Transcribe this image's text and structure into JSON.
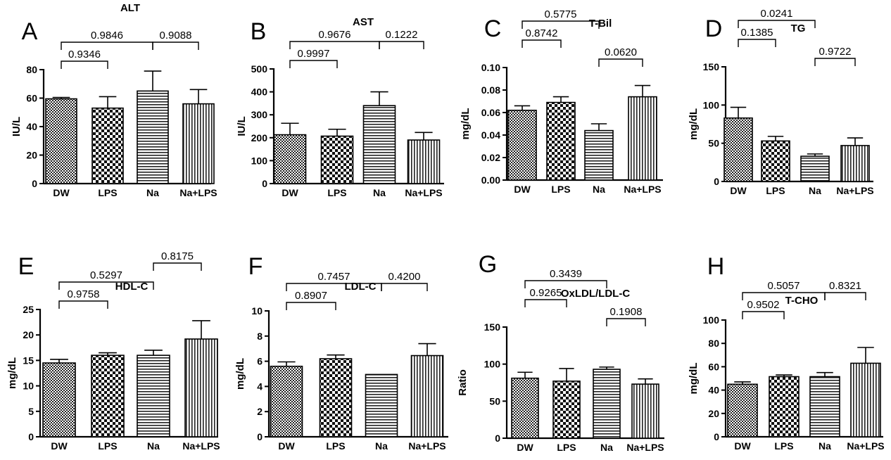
{
  "figure": {
    "n_panels": 8
  },
  "chart_data": [
    {
      "type": "bar",
      "letter": "A",
      "title": "ALT",
      "ylabel": "IU/L",
      "categories": [
        "DW",
        "LPS",
        "Na",
        "Na+LPS"
      ],
      "values": [
        59.5,
        53,
        65,
        56
      ],
      "errors": [
        1,
        8,
        14,
        10
      ],
      "ylim": [
        0,
        80
      ],
      "yticks": [
        "0",
        "20",
        "40",
        "60",
        "80"
      ],
      "ytick_values": [
        0,
        20,
        40,
        60,
        80
      ],
      "comparisons": [
        {
          "from": 0,
          "to": 2,
          "label": "0.9846",
          "level": 2
        },
        {
          "from": 0,
          "to": 1,
          "label": "0.9346",
          "level": 1
        },
        {
          "from": 2,
          "to": 3,
          "label": "0.9088",
          "level": 2
        }
      ]
    },
    {
      "type": "bar",
      "letter": "B",
      "title": "AST",
      "ylabel": "IU/L",
      "categories": [
        "DW",
        "LPS",
        "Na",
        "Na+LPS"
      ],
      "values": [
        213,
        207,
        340,
        190
      ],
      "errors": [
        50,
        30,
        60,
        33
      ],
      "ylim": [
        0,
        500
      ],
      "yticks": [
        "0",
        "100",
        "200",
        "300",
        "400",
        "500"
      ],
      "ytick_values": [
        0,
        100,
        200,
        300,
        400,
        500
      ],
      "comparisons": [
        {
          "from": 0,
          "to": 2,
          "label": "0.9676",
          "level": 2
        },
        {
          "from": 0,
          "to": 1,
          "label": "0.9997",
          "level": 1
        },
        {
          "from": 2,
          "to": 3,
          "label": "0.1222",
          "level": 2
        }
      ]
    },
    {
      "type": "bar",
      "letter": "C",
      "title": "T-Bil",
      "ylabel": "mg/dL",
      "categories": [
        "DW",
        "LPS",
        "Na",
        "Na+LPS"
      ],
      "values": [
        0.062,
        0.069,
        0.044,
        0.074
      ],
      "errors": [
        0.004,
        0.005,
        0.006,
        0.01
      ],
      "ylim": [
        0,
        0.1
      ],
      "yticks": [
        "0.00",
        "0.02",
        "0.04",
        "0.06",
        "0.08",
        "0.10"
      ],
      "ytick_values": [
        0,
        0.02,
        0.04,
        0.06,
        0.08,
        0.1
      ],
      "comparisons": [
        {
          "from": 0,
          "to": 2,
          "label": "0.5775",
          "level": 3
        },
        {
          "from": 0,
          "to": 1,
          "label": "0.8742",
          "level": 2
        },
        {
          "from": 2,
          "to": 3,
          "label": "0.0620",
          "level": 1
        }
      ]
    },
    {
      "type": "bar",
      "letter": "D",
      "title": "TG",
      "ylabel": "mg/dL",
      "categories": [
        "DW",
        "LPS",
        "Na",
        "Na+LPS"
      ],
      "values": [
        83,
        53,
        33,
        47
      ],
      "errors": [
        14,
        6,
        3,
        10
      ],
      "ylim": [
        0,
        150
      ],
      "yticks": [
        "0",
        "50",
        "100",
        "150"
      ],
      "ytick_values": [
        0,
        50,
        100,
        150
      ],
      "comparisons": [
        {
          "from": 0,
          "to": 2,
          "label": "0.0241",
          "level": 3
        },
        {
          "from": 0,
          "to": 1,
          "label": "0.1385",
          "level": 2
        },
        {
          "from": 2,
          "to": 3,
          "label": "0.9722",
          "level": 1
        }
      ]
    },
    {
      "type": "bar",
      "letter": "E",
      "title": "HDL-C",
      "ylabel": "mg/dL",
      "categories": [
        "DW",
        "LPS",
        "Na",
        "Na+LPS"
      ],
      "values": [
        14.5,
        16,
        16,
        19.2
      ],
      "errors": [
        0.7,
        0.5,
        1,
        3.6
      ],
      "ylim": [
        0,
        25
      ],
      "yticks": [
        "0",
        "5",
        "10",
        "15",
        "20",
        "25"
      ],
      "ytick_values": [
        0,
        5,
        10,
        15,
        20,
        25
      ],
      "comparisons": [
        {
          "from": 0,
          "to": 2,
          "label": "0.5297",
          "level": 2
        },
        {
          "from": 0,
          "to": 1,
          "label": "0.9758",
          "level": 1
        },
        {
          "from": 2,
          "to": 3,
          "label": "0.8175",
          "level": 3
        }
      ]
    },
    {
      "type": "bar",
      "letter": "F",
      "title": "LDL-C",
      "ylabel": "mg/dL",
      "categories": [
        "DW",
        "LPS",
        "Na",
        "Na+LPS"
      ],
      "values": [
        5.6,
        6.2,
        4.95,
        6.45
      ],
      "errors": [
        0.35,
        0.3,
        0,
        0.95
      ],
      "ylim": [
        0,
        10
      ],
      "yticks": [
        "0",
        "2",
        "4",
        "6",
        "8",
        "10"
      ],
      "ytick_values": [
        0,
        2,
        4,
        6,
        8,
        10
      ],
      "comparisons": [
        {
          "from": 0,
          "to": 2,
          "label": "0.7457",
          "level": 2
        },
        {
          "from": 0,
          "to": 1,
          "label": "0.8907",
          "level": 1
        },
        {
          "from": 2,
          "to": 3,
          "label": "0.4200",
          "level": 2
        }
      ]
    },
    {
      "type": "bar",
      "letter": "G",
      "title": "OxLDL/LDL-C",
      "ylabel": "Ratio",
      "categories": [
        "DW",
        "LPS",
        "Na",
        "Na+LPS"
      ],
      "values": [
        81,
        77,
        93,
        73
      ],
      "errors": [
        8,
        17,
        3,
        7
      ],
      "ylim": [
        0,
        150
      ],
      "yticks": [
        "0",
        "50",
        "100",
        "150"
      ],
      "ytick_values": [
        0,
        50,
        100,
        150
      ],
      "comparisons": [
        {
          "from": 0,
          "to": 2,
          "label": "0.3439",
          "level": 3
        },
        {
          "from": 0,
          "to": 1,
          "label": "0.9265",
          "level": 2
        },
        {
          "from": 2,
          "to": 3,
          "label": "0.1908",
          "level": 1
        }
      ]
    },
    {
      "type": "bar",
      "letter": "H",
      "title": "T-CHO",
      "ylabel": "mg/dL",
      "categories": [
        "DW",
        "LPS",
        "Na",
        "Na+LPS"
      ],
      "values": [
        45,
        51.5,
        51.5,
        63
      ],
      "errors": [
        2,
        1.5,
        3.5,
        13.5
      ],
      "ylim": [
        0,
        100
      ],
      "yticks": [
        "0",
        "20",
        "40",
        "60",
        "80",
        "100"
      ],
      "ytick_values": [
        0,
        20,
        40,
        60,
        80,
        100
      ],
      "comparisons": [
        {
          "from": 0,
          "to": 2,
          "label": "0.5057",
          "level": 2
        },
        {
          "from": 0,
          "to": 1,
          "label": "0.9502",
          "level": 1
        },
        {
          "from": 2,
          "to": 3,
          "label": "0.8321",
          "level": 2
        }
      ]
    }
  ]
}
